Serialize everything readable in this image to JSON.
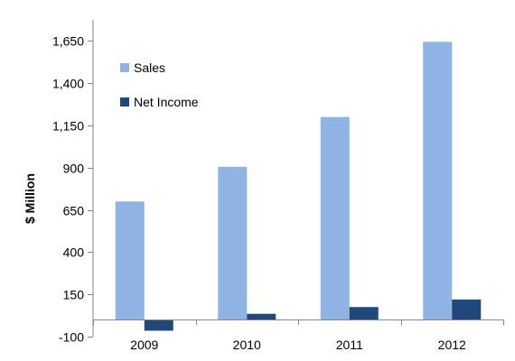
{
  "chart_data": {
    "type": "bar",
    "title": "",
    "xlabel": "",
    "ylabel": "$ Million",
    "categories": [
      "2009",
      "2010",
      "2011",
      "2012"
    ],
    "series": [
      {
        "name": "Sales",
        "values": [
          700,
          905,
          1200,
          1645
        ],
        "color": "#8EB4E3"
      },
      {
        "name": "Net Income",
        "values": [
          -65,
          35,
          75,
          120
        ],
        "color": "#1F497D"
      }
    ],
    "ylim": [
      -100,
      1775
    ],
    "yticks": [
      -100,
      150,
      400,
      650,
      900,
      1150,
      1400,
      1650
    ],
    "ytick_labels": [
      "-100",
      "150",
      "400",
      "650",
      "900",
      "1,150",
      "1,400",
      "1,650"
    ],
    "grid": false,
    "legend": "top-left"
  }
}
